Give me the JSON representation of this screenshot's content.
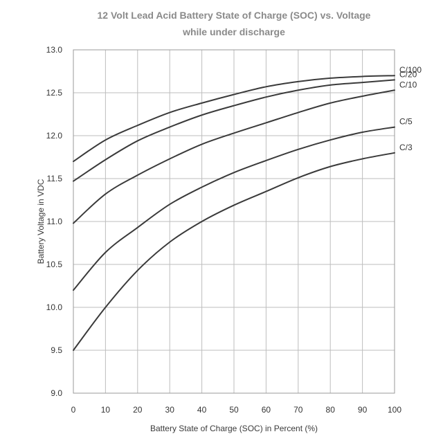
{
  "chart_data": {
    "type": "line",
    "title": "12 Volt Lead Acid Battery State of Charge (SOC) vs. Voltage",
    "subtitle": "while under discharge",
    "xlabel": "Battery State of Charge (SOC) in Percent (%)",
    "ylabel": "Battery Voltage in VDC",
    "xlim": [
      0,
      100
    ],
    "ylim": [
      9.0,
      13.0
    ],
    "x_ticks": [
      0,
      10,
      20,
      30,
      40,
      50,
      60,
      70,
      80,
      90,
      100
    ],
    "y_ticks": [
      "9.0",
      "9.5",
      "10.0",
      "10.5",
      "11.0",
      "11.5",
      "12.0",
      "12.5",
      "13.0"
    ],
    "grid": true,
    "legend": "inline-right",
    "x": [
      0,
      10,
      20,
      30,
      40,
      50,
      60,
      70,
      80,
      90,
      100
    ],
    "series": [
      {
        "name": "C/100",
        "values": [
          11.7,
          11.95,
          12.12,
          12.27,
          12.38,
          12.48,
          12.57,
          12.63,
          12.67,
          12.69,
          12.7
        ]
      },
      {
        "name": "C/20",
        "values": [
          11.47,
          11.72,
          11.94,
          12.1,
          12.24,
          12.35,
          12.45,
          12.53,
          12.59,
          12.62,
          12.65
        ]
      },
      {
        "name": "C/10",
        "values": [
          10.98,
          11.32,
          11.54,
          11.73,
          11.9,
          12.03,
          12.15,
          12.27,
          12.38,
          12.46,
          12.53
        ]
      },
      {
        "name": "C/5",
        "values": [
          10.2,
          10.64,
          10.93,
          11.2,
          11.4,
          11.57,
          11.71,
          11.84,
          11.95,
          12.04,
          12.1
        ]
      },
      {
        "name": "C/3",
        "values": [
          9.5,
          10.0,
          10.43,
          10.76,
          11.0,
          11.19,
          11.35,
          11.51,
          11.64,
          11.73,
          11.8
        ]
      }
    ]
  }
}
